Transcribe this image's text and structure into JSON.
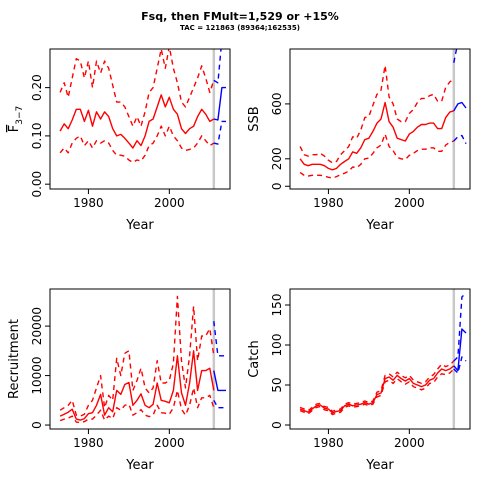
{
  "title": "Fsq, then FMult=1,529 or +15%",
  "subtitle": "TAC = 121863 (89364;162535)",
  "colors": {
    "historic": "#ff0000",
    "projection": "#0000ff",
    "divider": "#c8c8c8"
  },
  "chart_data": [
    {
      "type": "line",
      "panel": "F",
      "ylabel": "F3-7",
      "xlabel": "Year",
      "xlim": [
        1970.5,
        2015
      ],
      "ylim": [
        -0.01,
        0.28
      ],
      "xticks": [
        1980,
        2000
      ],
      "yticks": [
        0.0,
        0.1,
        0.2
      ],
      "ytick_labels": [
        "0.00",
        "0.10",
        "0.20"
      ],
      "divider_year": 2011,
      "historic": {
        "years": [
          1973,
          1974,
          1975,
          1976,
          1977,
          1978,
          1979,
          1980,
          1981,
          1982,
          1983,
          1984,
          1985,
          1986,
          1987,
          1988,
          1989,
          1990,
          1991,
          1992,
          1993,
          1994,
          1995,
          1996,
          1997,
          1998,
          1999,
          2000,
          2001,
          2002,
          2003,
          2004,
          2005,
          2006,
          2007,
          2008,
          2009,
          2010,
          2011
        ],
        "median": [
          0.11,
          0.125,
          0.115,
          0.133,
          0.155,
          0.155,
          0.13,
          0.153,
          0.12,
          0.15,
          0.135,
          0.15,
          0.14,
          0.115,
          0.1,
          0.103,
          0.095,
          0.085,
          0.075,
          0.09,
          0.08,
          0.1,
          0.13,
          0.135,
          0.16,
          0.185,
          0.16,
          0.18,
          0.155,
          0.145,
          0.115,
          0.105,
          0.115,
          0.12,
          0.14,
          0.155,
          0.145,
          0.13,
          0.135
        ],
        "upper": [
          0.19,
          0.21,
          0.18,
          0.22,
          0.26,
          0.255,
          0.22,
          0.255,
          0.2,
          0.255,
          0.23,
          0.255,
          0.24,
          0.205,
          0.17,
          0.17,
          0.16,
          0.14,
          0.12,
          0.14,
          0.12,
          0.15,
          0.19,
          0.2,
          0.24,
          0.28,
          0.24,
          0.285,
          0.24,
          0.21,
          0.17,
          0.16,
          0.18,
          0.2,
          0.22,
          0.245,
          0.22,
          0.19,
          0.215
        ],
        "lower": [
          0.065,
          0.075,
          0.065,
          0.085,
          0.095,
          0.1,
          0.08,
          0.09,
          0.075,
          0.09,
          0.085,
          0.09,
          0.085,
          0.07,
          0.06,
          0.06,
          0.058,
          0.05,
          0.045,
          0.05,
          0.048,
          0.06,
          0.08,
          0.085,
          0.1,
          0.12,
          0.1,
          0.12,
          0.1,
          0.09,
          0.075,
          0.07,
          0.072,
          0.075,
          0.085,
          0.1,
          0.09,
          0.08,
          0.085
        ]
      },
      "projection": {
        "years": [
          2011,
          2012,
          2013,
          2014
        ],
        "median": [
          0.135,
          0.133,
          0.2,
          0.2
        ],
        "upper": [
          0.215,
          0.21,
          0.3,
          0.32
        ],
        "lower": [
          0.085,
          0.083,
          0.13,
          0.13
        ]
      }
    },
    {
      "type": "line",
      "panel": "SSB",
      "ylabel": "SSB",
      "xlabel": "Year",
      "xlim": [
        1970.5,
        2015
      ],
      "ylim": [
        -20,
        1000
      ],
      "xticks": [
        1980,
        2000
      ],
      "yticks": [
        0,
        200,
        600
      ],
      "ytick_labels": [
        "0",
        "200",
        "600"
      ],
      "divider_year": 2011,
      "historic": {
        "years": [
          1973,
          1974,
          1975,
          1976,
          1977,
          1978,
          1979,
          1980,
          1981,
          1982,
          1983,
          1984,
          1985,
          1986,
          1987,
          1988,
          1989,
          1990,
          1991,
          1992,
          1993,
          1994,
          1995,
          1996,
          1997,
          1998,
          1999,
          2000,
          2001,
          2002,
          2003,
          2004,
          2005,
          2006,
          2007,
          2008,
          2009,
          2010,
          2011
        ],
        "median": [
          200,
          160,
          150,
          160,
          160,
          160,
          150,
          130,
          120,
          130,
          160,
          180,
          200,
          250,
          240,
          280,
          340,
          350,
          400,
          460,
          490,
          610,
          470,
          430,
          350,
          340,
          330,
          380,
          400,
          430,
          450,
          450,
          460,
          460,
          420,
          420,
          500,
          540,
          550
        ],
        "upper": [
          290,
          230,
          220,
          230,
          230,
          240,
          220,
          190,
          170,
          180,
          230,
          260,
          290,
          360,
          350,
          410,
          500,
          510,
          590,
          670,
          700,
          880,
          650,
          600,
          490,
          470,
          470,
          530,
          560,
          610,
          640,
          640,
          660,
          670,
          620,
          620,
          720,
          760,
          780
        ],
        "lower": [
          100,
          80,
          75,
          80,
          80,
          80,
          75,
          65,
          60,
          70,
          85,
          95,
          110,
          140,
          135,
          160,
          200,
          205,
          240,
          280,
          300,
          380,
          290,
          260,
          210,
          200,
          195,
          225,
          240,
          260,
          270,
          270,
          280,
          280,
          255,
          255,
          300,
          320,
          330
        ]
      },
      "projection": {
        "years": [
          2011,
          2012,
          2013,
          2014
        ],
        "median": [
          550,
          600,
          610,
          570
        ],
        "upper": [
          900,
          1050,
          1100,
          1100
        ],
        "lower": [
          330,
          360,
          370,
          310
        ]
      }
    },
    {
      "type": "line",
      "panel": "Recruitment",
      "ylabel": "Recruitment",
      "xlabel": "Year",
      "xlim": [
        1970.5,
        2015
      ],
      "ylim": [
        -800,
        27500
      ],
      "xticks": [
        1980,
        2000
      ],
      "yticks": [
        0,
        10000,
        20000
      ],
      "ytick_labels": [
        "0",
        "10000",
        "20000"
      ],
      "divider_year": 2011,
      "historic": {
        "years": [
          1973,
          1974,
          1975,
          1976,
          1977,
          1978,
          1979,
          1980,
          1981,
          1982,
          1983,
          1984,
          1985,
          1986,
          1987,
          1988,
          1989,
          1990,
          1991,
          1992,
          1993,
          1994,
          1995,
          1996,
          1997,
          1998,
          1999,
          2000,
          2001,
          2002,
          2003,
          2004,
          2005,
          2006,
          2007,
          2008,
          2009,
          2010,
          2011
        ],
        "median": [
          1800,
          2200,
          2600,
          3200,
          1200,
          1000,
          1300,
          2300,
          2500,
          4000,
          6200,
          2000,
          3500,
          2700,
          7000,
          6200,
          8200,
          8600,
          4000,
          5000,
          6300,
          4000,
          3500,
          4200,
          8500,
          5000,
          4800,
          4500,
          7000,
          14000,
          6500,
          4000,
          8500,
          15000,
          7000,
          11000,
          11000,
          11500,
          7000
        ],
        "upper": [
          3000,
          3500,
          4000,
          5000,
          2000,
          1800,
          2200,
          4000,
          5000,
          7500,
          10000,
          3500,
          6000,
          5000,
          13500,
          10000,
          14500,
          15000,
          7000,
          9000,
          11500,
          7500,
          6500,
          7500,
          13000,
          8500,
          8500,
          9000,
          12500,
          26000,
          13000,
          7500,
          14000,
          24000,
          13000,
          18000,
          18000,
          19500,
          14000
        ],
        "lower": [
          900,
          1200,
          1400,
          1800,
          600,
          500,
          700,
          1200,
          1200,
          2000,
          3000,
          1000,
          1800,
          1300,
          3500,
          3000,
          4000,
          4200,
          2000,
          2500,
          3100,
          2000,
          1700,
          2000,
          4000,
          2500,
          2400,
          2200,
          3500,
          7000,
          3200,
          2000,
          4000,
          7500,
          3500,
          5500,
          5500,
          6000,
          3500
        ]
      },
      "projection": {
        "years": [
          2011,
          2012,
          2013,
          2014
        ],
        "median": [
          11000,
          7000,
          7000,
          7000
        ],
        "upper": [
          21000,
          14000,
          14000,
          14000
        ],
        "lower": [
          5000,
          3500,
          3500,
          3500
        ]
      }
    },
    {
      "type": "line",
      "panel": "Catch",
      "ylabel": "Catch",
      "xlabel": "Year",
      "xlim": [
        1970.5,
        2015
      ],
      "ylim": [
        -5,
        170
      ],
      "xticks": [
        1980,
        2000
      ],
      "yticks": [
        0,
        50,
        100,
        150
      ],
      "ytick_labels": [
        "0",
        "50",
        "100",
        "150"
      ],
      "divider_year": 2011,
      "historic": {
        "years": [
          1973,
          1974,
          1975,
          1976,
          1977,
          1978,
          1979,
          1980,
          1981,
          1982,
          1983,
          1984,
          1985,
          1986,
          1987,
          1988,
          1989,
          1990,
          1991,
          1992,
          1993,
          1994,
          1995,
          1996,
          1997,
          1998,
          1999,
          2000,
          2001,
          2002,
          2003,
          2004,
          2005,
          2006,
          2007,
          2008,
          2009,
          2010,
          2011
        ],
        "median": [
          20,
          18,
          16,
          20,
          24,
          25,
          21,
          20,
          15,
          17,
          18,
          24,
          26,
          24,
          25,
          26,
          28,
          26,
          28,
          38,
          40,
          58,
          60,
          56,
          62,
          58,
          55,
          58,
          52,
          50,
          48,
          50,
          56,
          58,
          65,
          70,
          68,
          70,
          74
        ],
        "upper": [
          22,
          20,
          18,
          22,
          26,
          27,
          23,
          22,
          17,
          19,
          20,
          26,
          28,
          26,
          27,
          28,
          30,
          28,
          30,
          41,
          43,
          62,
          64,
          60,
          66,
          62,
          59,
          62,
          56,
          54,
          52,
          54,
          60,
          63,
          70,
          76,
          73,
          75,
          80
        ],
        "lower": [
          18,
          16,
          14,
          18,
          22,
          23,
          19,
          18,
          13,
          15,
          16,
          22,
          24,
          22,
          23,
          24,
          26,
          24,
          26,
          35,
          37,
          54,
          56,
          52,
          58,
          54,
          51,
          54,
          48,
          46,
          44,
          46,
          52,
          53,
          60,
          64,
          63,
          65,
          70
        ]
      },
      "projection": {
        "years": [
          2011,
          2012,
          2013,
          2014
        ],
        "median": [
          74,
          68,
          120,
          115
        ],
        "upper": [
          80,
          85,
          160,
          165
        ],
        "lower": [
          70,
          65,
          85,
          80
        ]
      }
    }
  ]
}
